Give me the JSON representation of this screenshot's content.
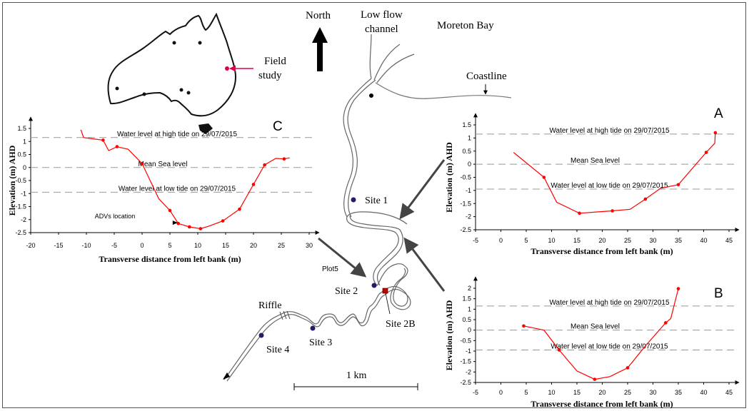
{
  "map": {
    "north": "North",
    "low_flow_channel": [
      "Low flow",
      "channel"
    ],
    "moreton_bay": "Moreton Bay",
    "coastline": "Coastline",
    "field_study": [
      "Field",
      "study"
    ],
    "sites": [
      "Site 1",
      "Site 2",
      "Site 2B",
      "Site 3",
      "Site 4"
    ],
    "riffle": "Riffle",
    "plot_label": "Plot5",
    "scale": "1 km"
  },
  "colors": {
    "series": "#ff0000",
    "dash": "#999999",
    "arrow": "#444444",
    "site": "#2a1a66",
    "site2b": "#cc0000"
  },
  "chart_data": [
    {
      "id": "C",
      "type": "line",
      "panel_label": "C",
      "xlabel": "Transverse distance from left bank (m)",
      "ylabel": "Elevation (m) AHD",
      "xlim": [
        -20,
        30
      ],
      "ylim": [
        -2.5,
        1.5
      ],
      "xticks": [
        "-20",
        "-15",
        "-10",
        "-5",
        "0",
        "5",
        "10",
        "15",
        "20",
        "25",
        "30"
      ],
      "yticks": [
        "1.5",
        "1",
        "0.5",
        "0",
        "-0.5",
        "-1",
        "-1.5",
        "-2",
        "-2.5"
      ],
      "x": [
        -11,
        -10.5,
        -7,
        -6,
        -4.5,
        -2.5,
        0,
        3,
        5,
        6.5,
        8.5,
        10.5,
        12,
        14.5,
        17.5,
        20,
        22,
        24,
        25.5,
        26.5
      ],
      "y": [
        1.45,
        1.15,
        1.05,
        0.65,
        0.8,
        0.7,
        0.15,
        -1.2,
        -1.65,
        -2.15,
        -2.28,
        -2.35,
        -2.25,
        -2.05,
        -1.6,
        -0.65,
        0.1,
        0.35,
        0.33,
        0.37
      ],
      "markers": [
        false,
        false,
        true,
        false,
        true,
        false,
        true,
        false,
        true,
        true,
        true,
        true,
        false,
        true,
        true,
        true,
        true,
        false,
        true,
        false
      ],
      "reference_lines": [
        {
          "label": "Water level at high tide on 29/07/2015",
          "y": 1.15
        },
        {
          "label": "Mean Sea level",
          "y": 0
        },
        {
          "label": "Water level at low tide on 29/07/2015",
          "y": -0.95
        }
      ],
      "annotation": "ADVs location",
      "annotation_x": 6,
      "annotation_y": -2.12
    },
    {
      "id": "A",
      "type": "line",
      "panel_label": "A",
      "xlabel": "Transverse distance from left bank (m)",
      "ylabel": "Elevation (m) AHD",
      "xlim": [
        -5,
        45
      ],
      "ylim": [
        -2.5,
        1.5
      ],
      "xticks": [
        "-5",
        "0",
        "5",
        "10",
        "15",
        "20",
        "25",
        "30",
        "35",
        "40",
        "45"
      ],
      "yticks": [
        "1.5",
        "1",
        "0.5",
        "0",
        "-0.5",
        "-1",
        "-1.5",
        "-2",
        "-2.5"
      ],
      "x": [
        2.5,
        8.5,
        11,
        15.5,
        19,
        22,
        25.5,
        28.5,
        31.5,
        35,
        40.5,
        42.2,
        42.3
      ],
      "y": [
        0.45,
        -0.5,
        -1.45,
        -1.87,
        -1.82,
        -1.78,
        -1.72,
        -1.33,
        -0.92,
        -0.78,
        0.45,
        0.8,
        1.2
      ],
      "markers": [
        false,
        true,
        false,
        true,
        false,
        true,
        false,
        true,
        false,
        true,
        true,
        false,
        true
      ],
      "reference_lines": [
        {
          "label": "Water level at high tide on 29/07/2015",
          "y": 1.15
        },
        {
          "label": "Mean Sea level",
          "y": 0
        },
        {
          "label": "Water level at low tide on 29/07/2015",
          "y": -0.95
        }
      ]
    },
    {
      "id": "B",
      "type": "line",
      "panel_label": "B",
      "xlabel": "Transverse distance from left bank (m)",
      "ylabel": "Elevation (m) AHD",
      "xlim": [
        -5,
        45
      ],
      "ylim": [
        -2.5,
        2
      ],
      "xticks": [
        "-5",
        "0",
        "5",
        "10",
        "15",
        "20",
        "25",
        "30",
        "35",
        "40",
        "45"
      ],
      "yticks": [
        "2",
        "1.5",
        "1",
        "0.5",
        "0",
        "-0.5",
        "-1",
        "-1.5",
        "-2",
        "-2.5"
      ],
      "x": [
        4.5,
        8.5,
        11.5,
        15,
        18.5,
        21.5,
        25,
        28.5,
        32.5,
        33.5,
        35
      ],
      "y": [
        0.2,
        0,
        -0.95,
        -1.95,
        -2.35,
        -2.22,
        -1.8,
        -0.75,
        0.35,
        0.55,
        1.98
      ],
      "markers": [
        true,
        false,
        true,
        false,
        true,
        false,
        true,
        false,
        true,
        false,
        true
      ],
      "reference_lines": [
        {
          "label": "Water level at high tide on 29/07/2015",
          "y": 1.15
        },
        {
          "label": "Mean Sea level",
          "y": 0
        },
        {
          "label": "Water level at low tide on 29/07/2015",
          "y": -0.95
        }
      ]
    }
  ]
}
